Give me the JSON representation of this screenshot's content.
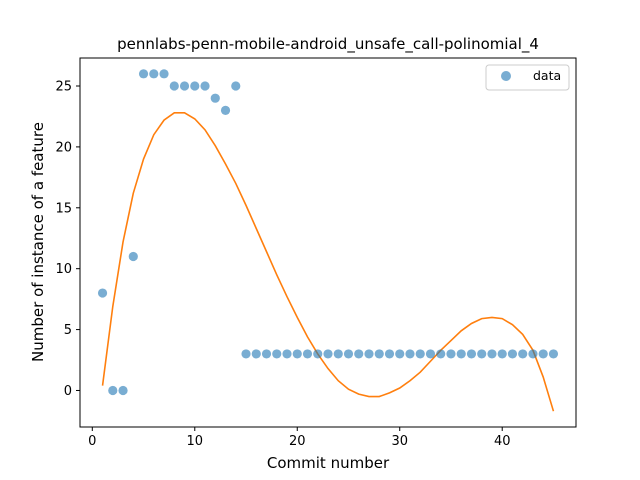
{
  "chart_data": {
    "type": "scatter",
    "title": "pennlabs-penn-mobile-android_unsafe_call-polinomial_4",
    "xlabel": "Commit number",
    "ylabel": "Number of instance of a feature",
    "xlim": [
      -1.2,
      47.2
    ],
    "ylim": [
      -3.0,
      27.3
    ],
    "xticks": [
      0,
      10,
      20,
      30,
      40
    ],
    "yticks": [
      0,
      5,
      10,
      15,
      20,
      25
    ],
    "legend": {
      "placement": "top-right",
      "entries": [
        "data"
      ]
    },
    "colors": {
      "scatter": "#1f77b4",
      "fit": "#ff7f0e"
    },
    "series": [
      {
        "name": "data",
        "kind": "scatter",
        "x": [
          1,
          2,
          3,
          4,
          5,
          6,
          7,
          8,
          9,
          10,
          11,
          12,
          13,
          14,
          15,
          16,
          17,
          18,
          19,
          20,
          21,
          22,
          23,
          24,
          25,
          26,
          27,
          28,
          29,
          30,
          31,
          32,
          33,
          34,
          35,
          36,
          37,
          38,
          39,
          40,
          41,
          42,
          43,
          44,
          45
        ],
        "y": [
          8,
          0,
          0,
          11,
          26,
          26,
          26,
          25,
          25,
          25,
          25,
          24,
          23,
          25,
          3,
          3,
          3,
          3,
          3,
          3,
          3,
          3,
          3,
          3,
          3,
          3,
          3,
          3,
          3,
          3,
          3,
          3,
          3,
          3,
          3,
          3,
          3,
          3,
          3,
          3,
          3,
          3,
          3,
          3,
          3
        ]
      },
      {
        "kind": "line",
        "x": [
          1,
          2,
          3,
          4,
          5,
          6,
          7,
          8,
          9,
          10,
          11,
          12,
          13,
          14,
          15,
          16,
          17,
          18,
          19,
          20,
          21,
          22,
          23,
          24,
          25,
          26,
          27,
          28,
          29,
          30,
          31,
          32,
          33,
          34,
          35,
          36,
          37,
          38,
          39,
          40,
          41,
          42,
          43,
          44,
          45
        ],
        "y": [
          0.4,
          6.9,
          12.2,
          16.2,
          19.0,
          21.0,
          22.2,
          22.8,
          22.8,
          22.3,
          21.4,
          20.1,
          18.6,
          17.0,
          15.2,
          13.3,
          11.4,
          9.5,
          7.7,
          6.0,
          4.4,
          3.0,
          1.8,
          0.8,
          0.1,
          -0.3,
          -0.5,
          -0.5,
          -0.2,
          0.2,
          0.8,
          1.5,
          2.4,
          3.3,
          4.1,
          4.9,
          5.5,
          5.9,
          6.0,
          5.9,
          5.4,
          4.6,
          3.3,
          1.1,
          -1.7
        ]
      }
    ]
  }
}
